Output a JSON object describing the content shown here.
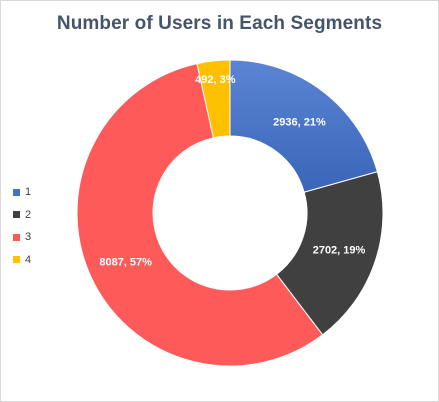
{
  "chart_data": {
    "type": "pie",
    "variant": "donut",
    "title": "Number of Users in Each Segments",
    "categories": [
      "1",
      "2",
      "3",
      "4"
    ],
    "values": [
      2936,
      2702,
      8087,
      492
    ],
    "data_labels": [
      "2936, 21%",
      "2702, 19%",
      "8087, 57%",
      "492, 3%"
    ],
    "colors": [
      "#4472c4",
      "#404040",
      "#ff5a5a",
      "#ffc000"
    ],
    "legend_position": "left",
    "start_angle": "12 o'clock",
    "direction": "clockwise"
  }
}
